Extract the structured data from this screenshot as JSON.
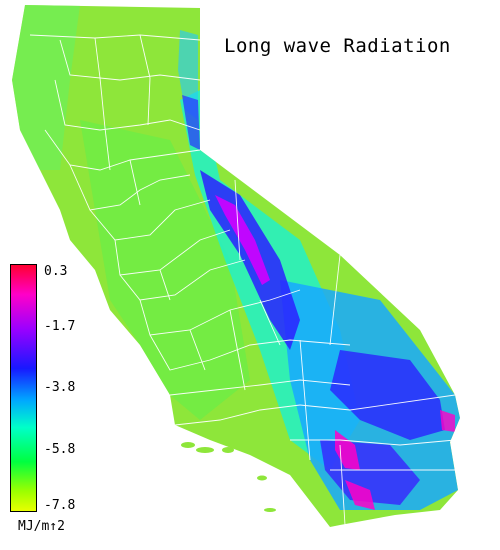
{
  "map": {
    "title": "Long wave Radiation",
    "region": "California",
    "base_color": "#8ee63a",
    "county_line_color": "#ffffff"
  },
  "legend": {
    "ticks": [
      "0.3",
      "-1.7",
      "-3.8",
      "-5.8",
      "-7.8"
    ],
    "units": "MJ/m↑2",
    "colors": [
      "#ff0030",
      "#ff00c8",
      "#9b00ff",
      "#1818ff",
      "#00a8ff",
      "#00ffc8",
      "#00ff40",
      "#9cff00",
      "#e8ff00"
    ]
  }
}
